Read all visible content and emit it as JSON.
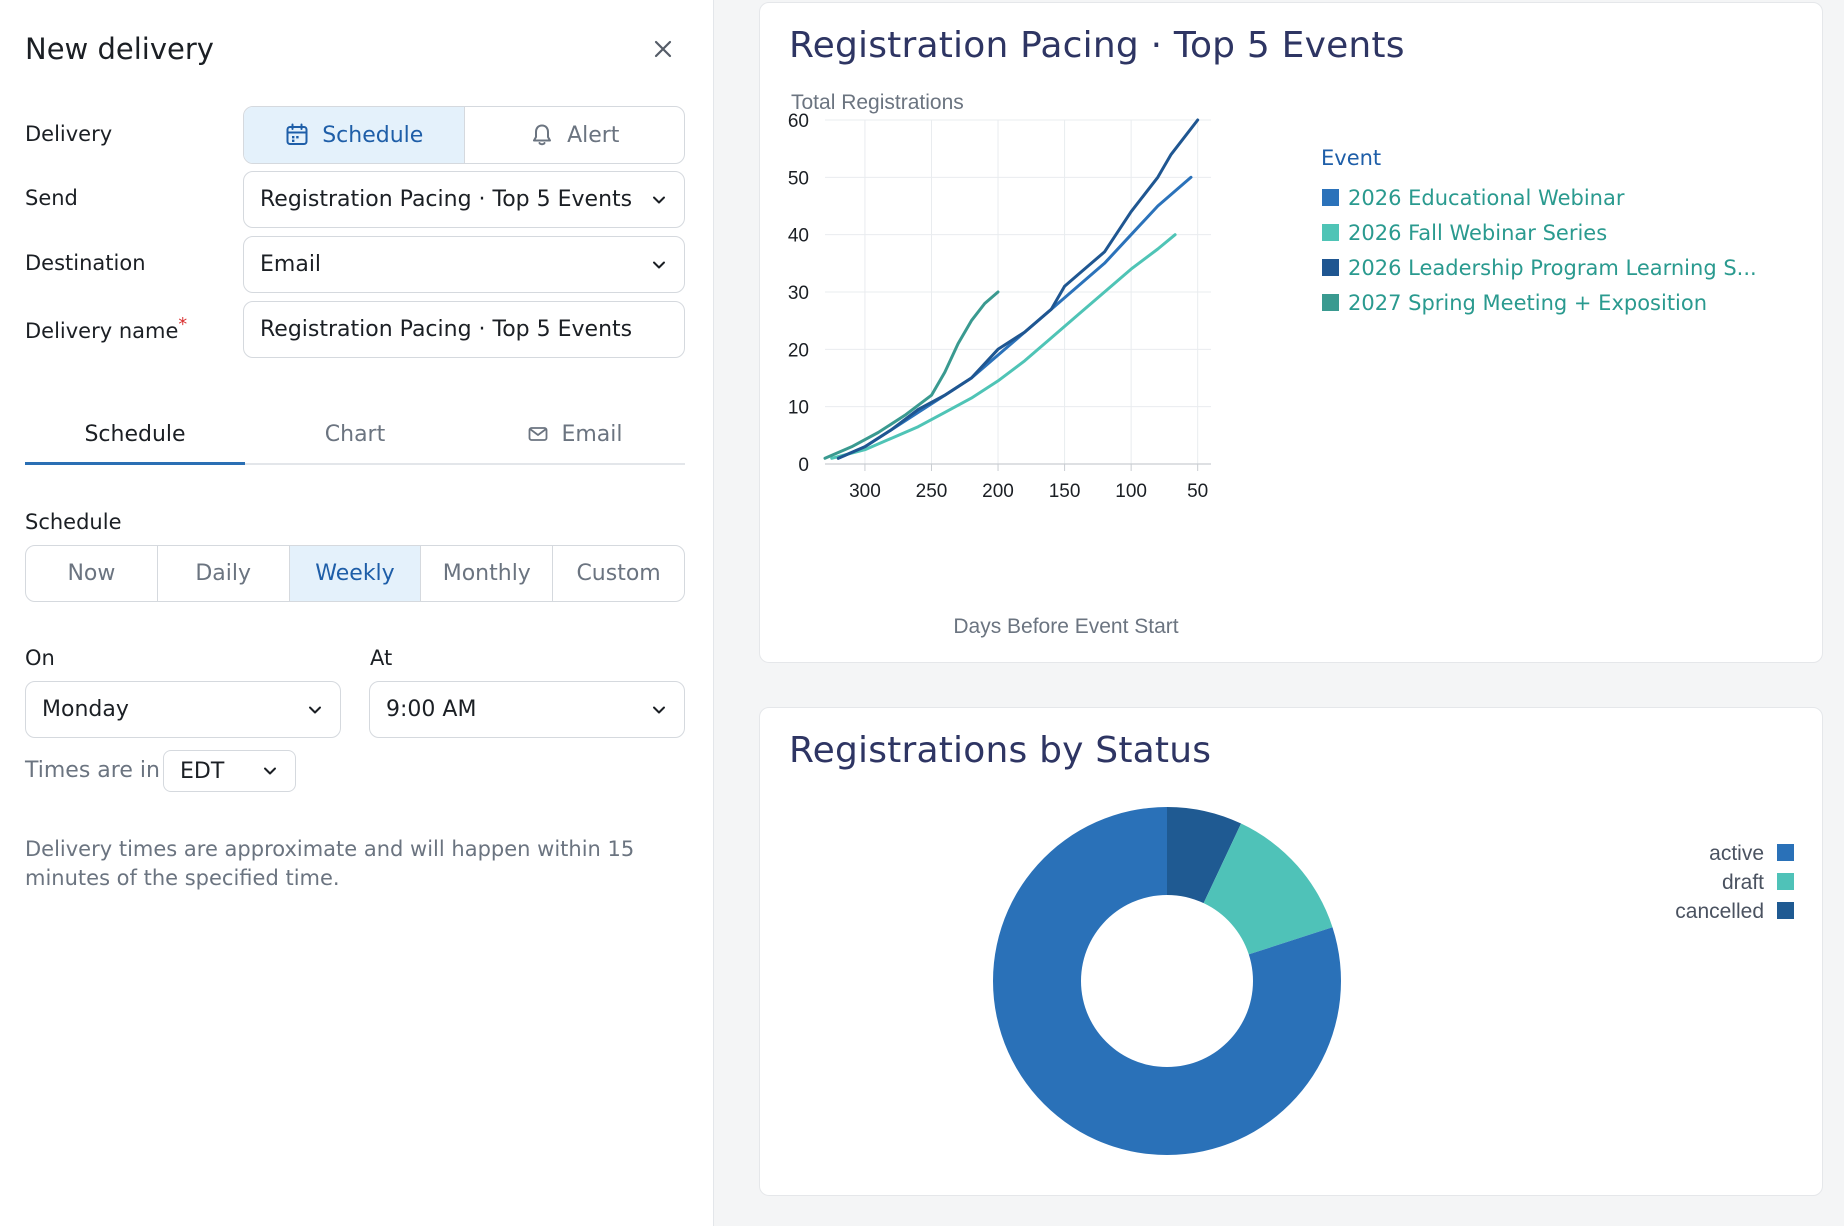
{
  "panel": {
    "title": "New delivery",
    "fields": {
      "delivery_label": "Delivery",
      "delivery_options": [
        "Schedule",
        "Alert"
      ],
      "delivery_selected": "Schedule",
      "send_label": "Send",
      "send_value": "Registration Pacing · Top 5 Events",
      "destination_label": "Destination",
      "destination_value": "Email",
      "name_label": "Delivery name",
      "name_required_mark": "*",
      "name_value": "Registration Pacing · Top 5 Events"
    },
    "tabs": [
      {
        "label": "Schedule",
        "active": true
      },
      {
        "label": "Chart",
        "active": false
      },
      {
        "label": "Email",
        "active": false
      }
    ],
    "schedule": {
      "label": "Schedule",
      "options": [
        "Now",
        "Daily",
        "Weekly",
        "Monthly",
        "Custom"
      ],
      "selected": "Weekly",
      "on_label": "On",
      "on_value": "Monday",
      "at_label": "At",
      "at_value": "9:00 AM",
      "tz_label": "Times are in",
      "tz_value": "EDT",
      "helper": "Delivery times are approximate and will happen within 15 minutes of the specified time."
    }
  },
  "colors": {
    "accent": "#2a6fb4",
    "series": [
      "#2b72ba",
      "#4fc4b6",
      "#1f5691",
      "#3a9a90"
    ],
    "pie": [
      "#2a71b8",
      "#4fc2b8",
      "#1f5a92"
    ]
  },
  "chart_data": [
    {
      "type": "line",
      "title": "Registration Pacing · Top 5 Events",
      "xlabel": "Days Before Event Start",
      "ylabel": "Total Registrations",
      "xlim": [
        330,
        40
      ],
      "ylim": [
        0,
        60
      ],
      "x_reversed": true,
      "xticks": [
        300,
        250,
        200,
        150,
        100,
        50
      ],
      "yticks": [
        0,
        10,
        20,
        30,
        40,
        50,
        60
      ],
      "grid": true,
      "legend_title": "Event",
      "legend_position": "right",
      "series": [
        {
          "name": "2026 Educational Webinar",
          "points": [
            [
              320,
              1
            ],
            [
              300,
              3
            ],
            [
              280,
              6
            ],
            [
              260,
              9
            ],
            [
              240,
              12
            ],
            [
              220,
              15
            ],
            [
              200,
              19
            ],
            [
              180,
              23
            ],
            [
              160,
              27
            ],
            [
              140,
              31
            ],
            [
              120,
              35
            ],
            [
              100,
              40
            ],
            [
              80,
              45
            ],
            [
              55,
              50
            ]
          ]
        },
        {
          "name": "2026 Fall Webinar Series",
          "points": [
            [
              325,
              1
            ],
            [
              300,
              2.5
            ],
            [
              280,
              4.5
            ],
            [
              260,
              6.5
            ],
            [
              240,
              9
            ],
            [
              220,
              11.5
            ],
            [
              200,
              14.5
            ],
            [
              180,
              18
            ],
            [
              160,
              22
            ],
            [
              140,
              26
            ],
            [
              120,
              30
            ],
            [
              100,
              34
            ],
            [
              80,
              37.5
            ],
            [
              67,
              40
            ]
          ]
        },
        {
          "name": "2026 Leadership Program Learning S...",
          "points": [
            [
              320,
              1
            ],
            [
              300,
              3
            ],
            [
              280,
              6
            ],
            [
              260,
              9.5
            ],
            [
              240,
              12
            ],
            [
              220,
              15
            ],
            [
              200,
              20
            ],
            [
              180,
              23
            ],
            [
              160,
              27
            ],
            [
              150,
              31
            ],
            [
              140,
              33
            ],
            [
              120,
              37
            ],
            [
              100,
              44
            ],
            [
              80,
              50
            ],
            [
              70,
              54
            ],
            [
              50,
              60
            ]
          ]
        },
        {
          "name": "2027 Spring Meeting + Exposition",
          "points": [
            [
              330,
              1
            ],
            [
              310,
              3
            ],
            [
              290,
              5.5
            ],
            [
              270,
              8.5
            ],
            [
              250,
              12
            ],
            [
              240,
              16
            ],
            [
              230,
              21
            ],
            [
              220,
              25
            ],
            [
              210,
              28
            ],
            [
              200,
              30
            ]
          ]
        }
      ]
    },
    {
      "type": "pie",
      "title": "Registrations by Status",
      "donut": true,
      "legend_position": "right",
      "labels": [
        "active",
        "draft",
        "cancelled"
      ],
      "values": [
        80,
        13,
        7
      ]
    }
  ]
}
